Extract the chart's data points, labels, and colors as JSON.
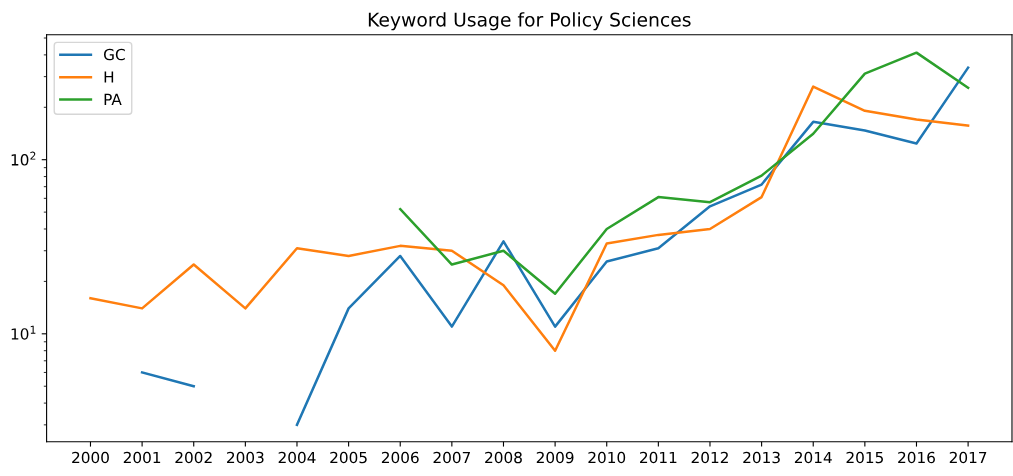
{
  "chart_data": {
    "type": "line",
    "title": "Keyword Usage for Policy Sciences",
    "categories": [
      "2000",
      "2001",
      "2002",
      "2003",
      "2004",
      "2005",
      "2006",
      "2007",
      "2008",
      "2009",
      "2010",
      "2011",
      "2012",
      "2013",
      "2014",
      "2015",
      "2016",
      "2017"
    ],
    "series": [
      {
        "name": "GC",
        "color": "#1f77b4",
        "values": [
          null,
          6,
          5,
          null,
          3,
          14,
          28,
          11,
          34,
          11,
          26,
          31,
          54,
          72,
          165,
          147,
          124,
          338
        ]
      },
      {
        "name": "H",
        "color": "#ff7f0e",
        "values": [
          16,
          14,
          25,
          14,
          31,
          28,
          32,
          30,
          19,
          8,
          33,
          37,
          40,
          61,
          263,
          191,
          170,
          157
        ]
      },
      {
        "name": "PA",
        "color": "#2ca02c",
        "values": [
          null,
          null,
          null,
          null,
          null,
          null,
          52,
          25,
          30,
          17,
          40,
          61,
          57,
          81,
          141,
          312,
          412,
          259
        ]
      }
    ],
    "log": "y",
    "ylim": [
      2.4,
      522
    ],
    "yticks": [
      {
        "value": 10,
        "label": "10$^{1}$"
      },
      {
        "value": 100,
        "label": "10$^{2}$"
      }
    ],
    "legend": "top left",
    "grid": false,
    "marker": "none",
    "line_style": "solid"
  }
}
